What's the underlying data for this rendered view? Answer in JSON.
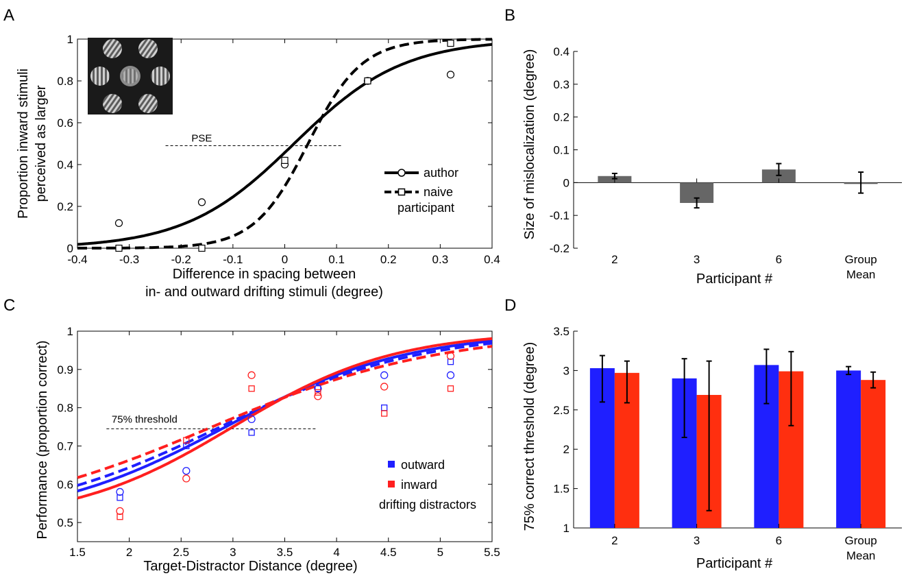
{
  "panels": [
    {
      "letter": "A",
      "chart_data": {
        "type": "scatter",
        "title": "",
        "xlabel": [
          "Difference in spacing between",
          "in- and outward drifting stimuli (degree)"
        ],
        "ylabel": [
          "Proportion inward stimuli",
          "perceived as larger"
        ],
        "xlim": [
          -0.4,
          0.4
        ],
        "ylim": [
          0,
          1
        ],
        "xticks": [
          -0.4,
          -0.3,
          -0.2,
          -0.1,
          0,
          0.1,
          0.2,
          0.3,
          0.4
        ],
        "xtick_labels": [
          "-0.4",
          "-0.3",
          "-0.2",
          "-0.1",
          "0",
          "0.1",
          "0.2",
          "0.3",
          "0.4"
        ],
        "yticks": [
          0,
          0.2,
          0.4,
          0.6,
          0.8,
          1
        ],
        "ytick_labels": [
          "0",
          "0.2",
          "0.4",
          "0.6",
          "0.8",
          "1"
        ],
        "grid": false,
        "legend_position": "right",
        "series": [
          {
            "name": "author",
            "marker": "circle",
            "line": "solid",
            "x": [
              -0.32,
              -0.16,
              0,
              0.16,
              0.32
            ],
            "y": [
              0.12,
              0.22,
              0.4,
              0.8,
              0.83
            ],
            "fit": {
              "mu": 0.018,
              "s": 0.105
            }
          },
          {
            "name": "naive participant",
            "marker": "square",
            "line": "dashed",
            "x": [
              -0.32,
              -0.16,
              0,
              0.16,
              0.32
            ],
            "y": [
              0.0,
              0.0,
              0.42,
              0.8,
              0.98
            ],
            "fit": {
              "mu": 0.045,
              "s": 0.052
            }
          }
        ],
        "legend_lines": [
          "author",
          "naive",
          "participant"
        ],
        "annotations": [
          {
            "text": "PSE",
            "y": 0.49,
            "x_from": -0.23,
            "x_to": 0.11
          }
        ],
        "inset": "stimulus-image"
      }
    },
    {
      "letter": "B",
      "chart_data": {
        "type": "bar",
        "title": "",
        "xlabel": "Participant #",
        "ylabel": "Size of mislocalization (degree)",
        "categories": [
          "2",
          "3",
          "6",
          "Group Mean"
        ],
        "category_lines": [
          [
            "2"
          ],
          [
            "3"
          ],
          [
            "6"
          ],
          [
            "Group",
            "Mean"
          ]
        ],
        "values": [
          0.02,
          -0.062,
          0.04,
          0.0
        ],
        "errors": [
          0.008,
          0.015,
          0.018,
          0.032
        ],
        "ylim": [
          -0.2,
          0.4
        ],
        "yticks": [
          -0.2,
          -0.1,
          0,
          0.1,
          0.2,
          0.3,
          0.4
        ],
        "ytick_labels": [
          "-0.2",
          "-0.1",
          "0",
          "0.1",
          "0.2",
          "0.3",
          "0.4"
        ],
        "bar_color": "#666666"
      }
    },
    {
      "letter": "C",
      "chart_data": {
        "type": "scatter",
        "title": "",
        "xlabel": "Target-Distractor Distance (degree)",
        "ylabel": "Performance (proportion correct)",
        "xlim": [
          1.5,
          5.5
        ],
        "ylim": [
          0.45,
          1
        ],
        "xticks": [
          1.5,
          2,
          2.5,
          3,
          3.5,
          4,
          4.5,
          5,
          5.5
        ],
        "xtick_labels": [
          "1.5",
          "2",
          "2.5",
          "3",
          "3.5",
          "4",
          "4.5",
          "5",
          "5.5"
        ],
        "yticks": [
          0.5,
          0.6,
          0.7,
          0.8,
          0.9,
          1
        ],
        "ytick_labels": [
          "0.5",
          "0.6",
          "0.7",
          "0.8",
          "0.9",
          "1"
        ],
        "grid": false,
        "legend_position": "right",
        "legend": [
          {
            "label": "outward",
            "color": "#1f1fff"
          },
          {
            "label": "inward",
            "color": "#ff1f1f"
          }
        ],
        "legend_note": "drifting distractors",
        "annotations": [
          {
            "text": "75% threshold",
            "y": 0.745,
            "x_from": 1.78,
            "x_to": 3.8
          }
        ],
        "x": [
          1.91,
          2.55,
          3.18,
          3.82,
          4.46,
          5.1
        ],
        "series": [
          {
            "name": "outward",
            "color": "#1f1fff",
            "marker": "circle",
            "line": "solid",
            "y": [
              0.58,
              0.635,
              0.77,
              0.85,
              0.885,
              0.885
            ],
            "fit": {
              "A": 0.5,
              "B": 1.0,
              "mu": 2.93,
              "s": 0.88
            }
          },
          {
            "name": "outward",
            "color": "#1f1fff",
            "marker": "square",
            "line": "dashed",
            "y": [
              0.565,
              0.7,
              0.735,
              0.85,
              0.8,
              0.92
            ],
            "fit": {
              "A": 0.5,
              "B": 1.0,
              "mu": 2.88,
              "s": 0.97
            }
          },
          {
            "name": "inward",
            "color": "#ff1f1f",
            "marker": "circle",
            "line": "solid",
            "y": [
              0.53,
              0.615,
              0.885,
              0.83,
              0.855,
              0.935
            ],
            "fit": {
              "A": 0.5,
              "B": 1.0,
              "mu": 3.0,
              "s": 0.78
            }
          },
          {
            "name": "inward",
            "color": "#ff1f1f",
            "marker": "square",
            "line": "dashed",
            "y": [
              0.515,
              0.715,
              0.85,
              0.84,
              0.785,
              0.85
            ],
            "fit": {
              "A": 0.5,
              "B": 1.0,
              "mu": 2.8,
              "s": 1.1
            }
          }
        ]
      }
    },
    {
      "letter": "D",
      "chart_data": {
        "type": "bar",
        "title": "",
        "xlabel": "Participant #",
        "ylabel": "75% correct threshold (degree)",
        "categories": [
          "2",
          "3",
          "6",
          "Group Mean"
        ],
        "category_lines": [
          [
            "2"
          ],
          [
            "3"
          ],
          [
            "6"
          ],
          [
            "Group",
            "Mean"
          ]
        ],
        "ylim": [
          1,
          3.5
        ],
        "yticks": [
          1,
          1.5,
          2,
          2.5,
          3,
          3.5
        ],
        "ytick_labels": [
          "1",
          "1.5",
          "2",
          "2.5",
          "3",
          "3.5"
        ],
        "series": [
          {
            "name": "outward",
            "color": "#1f1fff",
            "values": [
              3.03,
              2.9,
              3.07,
              3.0
            ],
            "err_low": [
              2.6,
              2.15,
              2.58,
              2.95
            ],
            "err_high": [
              3.19,
              3.15,
              3.27,
              3.05
            ]
          },
          {
            "name": "inward",
            "color": "#ff2f0f",
            "values": [
              2.97,
              2.69,
              2.99,
              2.88
            ],
            "err_low": [
              2.59,
              1.22,
              2.3,
              2.78
            ],
            "err_high": [
              3.12,
              3.12,
              3.24,
              2.98
            ]
          }
        ]
      }
    }
  ]
}
